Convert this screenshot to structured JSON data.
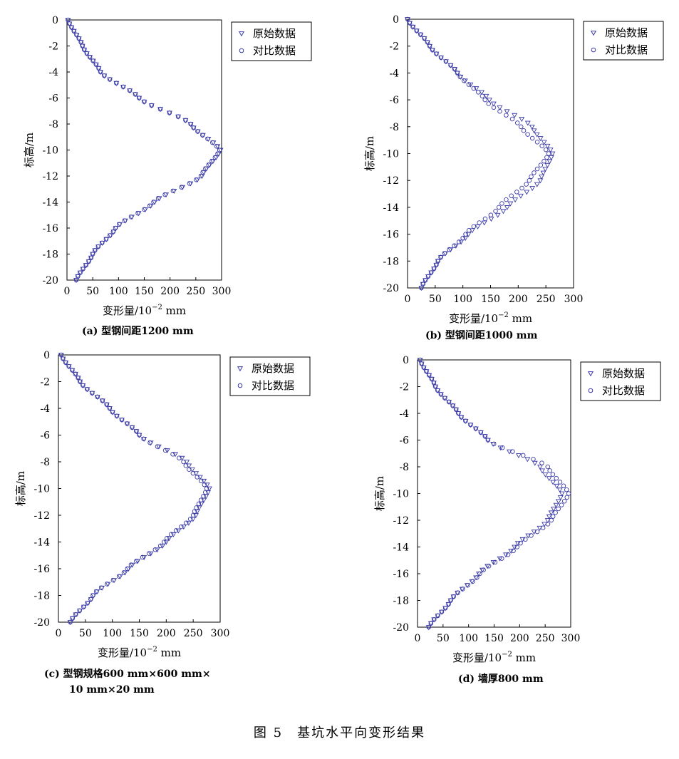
{
  "figure_title": "图 5　基坑水平向变形结果",
  "colors": {
    "original": "#3a3aa8",
    "compare": "#3a3aa8"
  },
  "chart_data": [
    {
      "type": "scatter",
      "panel": "a",
      "caption": "(a) 型钢间距1200 mm",
      "xlabel_main": "变形量/10",
      "xlabel_exp": "−2",
      "xlabel_unit": " mm",
      "ylabel": "标高/m",
      "xlim": [
        0,
        300
      ],
      "ylim": [
        -20,
        0
      ],
      "xticks": [
        0,
        50,
        100,
        150,
        200,
        250,
        300
      ],
      "yticks": [
        0,
        -2,
        -4,
        -6,
        -8,
        -10,
        -12,
        -14,
        -16,
        -18,
        -20
      ],
      "legend": {
        "placement": "top-right",
        "entries": [
          "原始数据",
          "对比数据"
        ]
      },
      "series": [
        {
          "name": "原始数据",
          "marker": "triangle-down",
          "knots": [
            [
              0,
              2
            ],
            [
              -2,
              30
            ],
            [
              -4,
              65
            ],
            [
              -6,
              140
            ],
            [
              -8,
              240
            ],
            [
              -10,
              298
            ],
            [
              -12,
              262
            ],
            [
              -14,
              170
            ],
            [
              -16,
              95
            ],
            [
              -18,
              50
            ],
            [
              -20,
              18
            ]
          ]
        },
        {
          "name": "对比数据",
          "marker": "circle",
          "knots": [
            [
              0,
              2
            ],
            [
              -2,
              30
            ],
            [
              -4,
              65
            ],
            [
              -6,
              140
            ],
            [
              -8,
              240
            ],
            [
              -10,
              296
            ],
            [
              -12,
              260
            ],
            [
              -14,
              168
            ],
            [
              -16,
              94
            ],
            [
              -18,
              50
            ],
            [
              -20,
              18
            ]
          ]
        }
      ]
    },
    {
      "type": "scatter",
      "panel": "b",
      "caption": "(b) 型钢间距1000 mm",
      "xlabel_main": "变形量/10",
      "xlabel_exp": "−2",
      "xlabel_unit": " mm",
      "ylabel": "标高/m",
      "xlim": [
        0,
        300
      ],
      "ylim": [
        -20,
        0
      ],
      "xticks": [
        0,
        50,
        100,
        150,
        200,
        250,
        300
      ],
      "yticks": [
        0,
        -2,
        -4,
        -6,
        -8,
        -10,
        -12,
        -14,
        -16,
        -18,
        -20
      ],
      "legend": {
        "placement": "top-right",
        "entries": [
          "原始数据",
          "对比数据"
        ]
      },
      "series": [
        {
          "name": "原始数据",
          "marker": "triangle-down",
          "knots": [
            [
              0,
              0
            ],
            [
              -2,
              40
            ],
            [
              -4,
              90
            ],
            [
              -6,
              148
            ],
            [
              -8,
              225
            ],
            [
              -10,
              262
            ],
            [
              -12,
              240
            ],
            [
              -14,
              180
            ],
            [
              -16,
              110
            ],
            [
              -18,
              55
            ],
            [
              -20,
              25
            ]
          ]
        },
        {
          "name": "对比数据",
          "marker": "circle",
          "knots": [
            [
              0,
              0
            ],
            [
              -2,
              40
            ],
            [
              -4,
              90
            ],
            [
              -6,
              140
            ],
            [
              -8,
              205
            ],
            [
              -10,
              255
            ],
            [
              -12,
              220
            ],
            [
              -14,
              165
            ],
            [
              -16,
              105
            ],
            [
              -18,
              55
            ],
            [
              -20,
              25
            ]
          ]
        }
      ]
    },
    {
      "type": "scatter",
      "panel": "c",
      "caption_line1": "(c) 型钢规格600 mm×600 mm×",
      "caption_line2": "10 mm×20 mm",
      "xlabel_main": "变形量/10",
      "xlabel_exp": "−2",
      "xlabel_unit": " mm",
      "ylabel": "标高/m",
      "xlim": [
        0,
        300
      ],
      "ylim": [
        -20,
        0
      ],
      "xticks": [
        0,
        50,
        100,
        150,
        200,
        250,
        300
      ],
      "yticks": [
        0,
        -2,
        -4,
        -6,
        -8,
        -10,
        -12,
        -14,
        -16,
        -18,
        -20
      ],
      "legend": {
        "placement": "top-right",
        "entries": [
          "原始数据",
          "对比数据"
        ]
      },
      "series": [
        {
          "name": "原始数据",
          "marker": "triangle-down",
          "knots": [
            [
              0,
              5
            ],
            [
              -2,
              40
            ],
            [
              -4,
              95
            ],
            [
              -6,
              150
            ],
            [
              -8,
              238
            ],
            [
              -10,
              280
            ],
            [
              -12,
              255
            ],
            [
              -14,
              200
            ],
            [
              -16,
              130
            ],
            [
              -18,
              65
            ],
            [
              -20,
              22
            ]
          ]
        },
        {
          "name": "对比数据",
          "marker": "circle",
          "knots": [
            [
              0,
              5
            ],
            [
              -2,
              40
            ],
            [
              -4,
              95
            ],
            [
              -6,
              150
            ],
            [
              -8,
              232
            ],
            [
              -10,
              275
            ],
            [
              -12,
              250
            ],
            [
              -14,
              196
            ],
            [
              -16,
              128
            ],
            [
              -18,
              64
            ],
            [
              -20,
              22
            ]
          ]
        }
      ]
    },
    {
      "type": "scatter",
      "panel": "d",
      "caption": "(d) 墙厚800 mm",
      "xlabel_main": "变形量/10",
      "xlabel_exp": "−2",
      "xlabel_unit": " mm",
      "ylabel": "标高/m",
      "xlim": [
        0,
        300
      ],
      "ylim": [
        -20,
        0
      ],
      "xticks": [
        0,
        50,
        100,
        150,
        200,
        250,
        300
      ],
      "yticks": [
        0,
        -2,
        -4,
        -6,
        -8,
        -10,
        -12,
        -14,
        -16,
        -18,
        -20
      ],
      "legend": {
        "placement": "top-right",
        "entries": [
          "原始数据",
          "对比数据"
        ]
      },
      "series": [
        {
          "name": "原始数据",
          "marker": "triangle-down",
          "knots": [
            [
              0,
              5
            ],
            [
              -2,
              35
            ],
            [
              -4,
              80
            ],
            [
              -6,
              138
            ],
            [
              -8,
              240
            ],
            [
              -10,
              283
            ],
            [
              -12,
              255
            ],
            [
              -14,
              190
            ],
            [
              -16,
              120
            ],
            [
              -18,
              65
            ],
            [
              -20,
              22
            ]
          ]
        },
        {
          "name": "对比数据",
          "marker": "circle",
          "knots": [
            [
              0,
              5
            ],
            [
              -2,
              35
            ],
            [
              -4,
              80
            ],
            [
              -6,
              138
            ],
            [
              -8,
              255
            ],
            [
              -10,
              296
            ],
            [
              -12,
              262
            ],
            [
              -14,
              195
            ],
            [
              -16,
              122
            ],
            [
              -18,
              65
            ],
            [
              -20,
              22
            ]
          ]
        }
      ]
    }
  ]
}
